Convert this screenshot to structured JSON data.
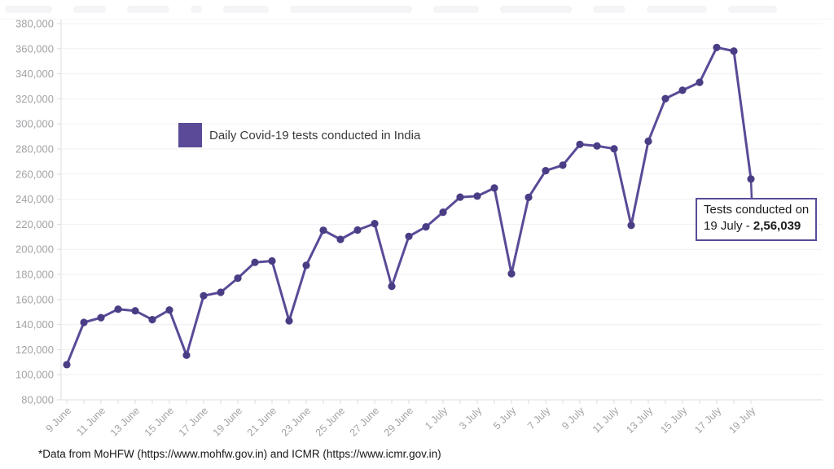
{
  "legend": {
    "swatch_color": "#5a4a97"
  },
  "annotation": {
    "line1": "Tests conducted on",
    "line2_prefix": "19 July - ",
    "value": "2,56,039",
    "border_color": "#5a4a97"
  },
  "footer": {
    "text": "*Data from MoHFW (https://www.mohfw.gov.in) and ICMR (https://www.icmr.gov.in)"
  },
  "chart_data": {
    "type": "line",
    "series_name": "Daily Covid-19 tests conducted in India",
    "x": [
      "9 June",
      "10 June",
      "11 June",
      "12 June",
      "13 June",
      "14 June",
      "15 June",
      "16 June",
      "17 June",
      "18 June",
      "19 June",
      "20 June",
      "21 June",
      "22 June",
      "23 June",
      "24 June",
      "25 June",
      "26 June",
      "27 June",
      "28 June",
      "29 June",
      "30 June",
      "1 July",
      "2 July",
      "3 July",
      "4 July",
      "5 July",
      "6 July",
      "7 July",
      "8 July",
      "9 July",
      "10 July",
      "11 July",
      "12 July",
      "13 July",
      "14 July",
      "15 July",
      "16 July",
      "17 July",
      "18 July",
      "19 July"
    ],
    "values": [
      108000,
      141700,
      145500,
      152300,
      151000,
      143900,
      151600,
      115500,
      163000,
      165700,
      177000,
      189600,
      190700,
      143000,
      187200,
      215200,
      207900,
      215400,
      220500,
      170500,
      210300,
      217900,
      229600,
      241600,
      242400,
      248900,
      180600,
      241400,
      262700,
      267100,
      283700,
      282500,
      280200,
      219100,
      286200,
      320200,
      326800,
      333200,
      361000,
      358100,
      256039
    ],
    "x_tick_labels": [
      "9 June",
      "11 June",
      "13 June",
      "15 June",
      "17 June",
      "19 June",
      "21 June",
      "23 June",
      "25 June",
      "27 June",
      "29 June",
      "1 July",
      "3 July",
      "5 July",
      "7 July",
      "9 July",
      "11 July",
      "13 July",
      "15 July",
      "17 July",
      "19 July"
    ],
    "ylim": [
      80000,
      380000
    ],
    "y_tick_step": 20000,
    "grid": true,
    "legend_position": "inside-top-left",
    "line_color": "#5a4a97",
    "point_color": "#4a3d85",
    "grid_color": "#f0f0f3",
    "axis_color": "#dcdce0",
    "tick_label_color": "#a3a3a7",
    "annotated_point": {
      "label": "19 July",
      "value": 256039
    }
  }
}
